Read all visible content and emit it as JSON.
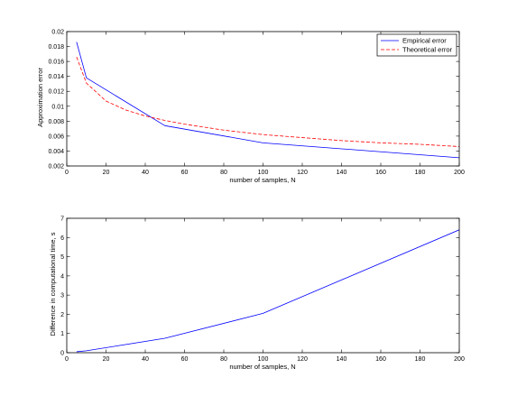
{
  "colors": {
    "empirical": "#0000ff",
    "theoretical": "#ff0000",
    "axes": "#000000",
    "background": "#ffffff"
  },
  "chart_data": [
    {
      "type": "line",
      "xlabel": "number of samples, N",
      "ylabel": "Approximation error",
      "xlim": [
        0,
        200
      ],
      "ylim": [
        0.002,
        0.02
      ],
      "xticks": [
        0,
        20,
        40,
        60,
        80,
        100,
        120,
        140,
        160,
        180,
        200
      ],
      "xtick_labels": [
        "0",
        "20",
        "40",
        "60",
        "80",
        "100",
        "120",
        "140",
        "160",
        "180",
        "200"
      ],
      "yticks": [
        0.002,
        0.004,
        0.006,
        0.008,
        0.01,
        0.012,
        0.014,
        0.016,
        0.018,
        0.02
      ],
      "ytick_labels": [
        "0.002",
        "0.004",
        "0.006",
        "0.008",
        "0.01",
        "0.012",
        "0.014",
        "0.016",
        "0.018",
        "0.02"
      ],
      "grid": false,
      "legend": "top-right",
      "series": [
        {
          "name": "Empirical error",
          "style": "solid",
          "color": "#0000ff",
          "x": [
            5,
            10,
            50,
            100,
            200
          ],
          "y": [
            0.0186,
            0.0138,
            0.0074,
            0.0051,
            0.0031
          ]
        },
        {
          "name": "Theoretical error",
          "style": "dashed",
          "color": "#ff0000",
          "x": [
            5,
            10,
            20,
            30,
            40,
            50,
            60,
            80,
            100,
            120,
            140,
            160,
            180,
            200
          ],
          "y": [
            0.0166,
            0.0131,
            0.0107,
            0.0095,
            0.0087,
            0.0081,
            0.0076,
            0.0068,
            0.0062,
            0.0058,
            0.0054,
            0.0051,
            0.0049,
            0.0046
          ]
        }
      ]
    },
    {
      "type": "line",
      "xlabel": "number of samples, N",
      "ylabel": "Difference in computational time, s",
      "xlim": [
        0,
        200
      ],
      "ylim": [
        0,
        7
      ],
      "xticks": [
        0,
        20,
        40,
        60,
        80,
        100,
        120,
        140,
        160,
        180,
        200
      ],
      "xtick_labels": [
        "0",
        "20",
        "40",
        "60",
        "80",
        "100",
        "120",
        "140",
        "160",
        "180",
        "200"
      ],
      "yticks": [
        0,
        1,
        2,
        3,
        4,
        5,
        6,
        7
      ],
      "ytick_labels": [
        "0",
        "1",
        "2",
        "3",
        "4",
        "5",
        "6",
        "7"
      ],
      "grid": false,
      "series": [
        {
          "style": "solid",
          "color": "#0000ff",
          "x": [
            5,
            10,
            50,
            100,
            200
          ],
          "y": [
            0.05,
            0.1,
            0.75,
            2.05,
            6.4
          ]
        }
      ]
    }
  ]
}
